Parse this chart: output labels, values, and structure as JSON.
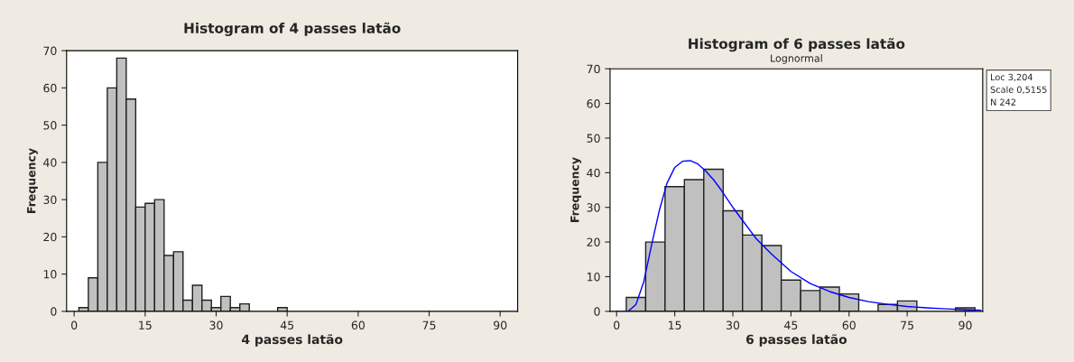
{
  "chart_data": [
    {
      "type": "histogram",
      "title": "Histogram of 4 passes latão",
      "xlabel": "4 passes latão",
      "ylabel": "Frequency",
      "bins": [
        1,
        3,
        5,
        7,
        9,
        11,
        13,
        15,
        17,
        19,
        21,
        23,
        25,
        27,
        29,
        31,
        33,
        35,
        37,
        39,
        41,
        43,
        45
      ],
      "values": [
        1,
        9,
        40,
        60,
        68,
        57,
        28,
        29,
        30,
        15,
        16,
        3,
        7,
        3,
        1,
        4,
        1,
        2,
        0,
        0,
        0,
        1
      ],
      "color": "#c0c0c0",
      "xlim": [
        -1.6,
        93.7
      ],
      "ylim": [
        0,
        70
      ],
      "xticks": [
        0,
        15,
        30,
        45,
        60,
        75,
        90
      ],
      "yticks": [
        0,
        10,
        20,
        30,
        40,
        50,
        60,
        70
      ],
      "grid": false
    },
    {
      "type": "histogram",
      "title": "Histogram of 6 passes latão",
      "subtitle": "Lognormal",
      "xlabel": "6 passes latão",
      "ylabel": "Frequency",
      "bins": [
        2.5,
        7.5,
        12.5,
        17.5,
        22.5,
        27.5,
        32.5,
        37.5,
        42.5,
        47.5,
        52.5,
        57.5,
        62.5,
        67.5,
        72.5,
        77.5,
        82.5,
        87.5,
        92.5
      ],
      "values": [
        4,
        20,
        36,
        38,
        41,
        29,
        22,
        19,
        9,
        6,
        7,
        5,
        0,
        2,
        3,
        0,
        0,
        1
      ],
      "color": "#c0c0c0",
      "series": [
        {
          "type": "line",
          "color": "#0000ff",
          "x": [
            0,
            3,
            5,
            7,
            9,
            11,
            13,
            15,
            17,
            19,
            21,
            23,
            25,
            27,
            30,
            33,
            36,
            40,
            45,
            50,
            55,
            60,
            65,
            70,
            75,
            80,
            85,
            90,
            94
          ],
          "values": [
            0,
            0,
            2,
            8.5,
            19,
            29,
            37,
            41.5,
            43.3,
            43.5,
            42.5,
            40.5,
            38,
            35,
            30,
            25.5,
            21,
            16.5,
            11.5,
            8,
            5.7,
            4,
            2.8,
            2,
            1.4,
            1,
            0.7,
            0.5,
            0.3
          ]
        }
      ],
      "annotations": [
        "Loc 3,204",
        "Scale 0,5155",
        "N 242"
      ],
      "xlim": [
        -1.7,
        94.5
      ],
      "ylim": [
        0,
        70
      ],
      "xticks": [
        0,
        15,
        30,
        45,
        60,
        75,
        90
      ],
      "yticks": [
        0,
        10,
        20,
        30,
        40,
        50,
        60,
        70
      ],
      "grid": false
    }
  ]
}
